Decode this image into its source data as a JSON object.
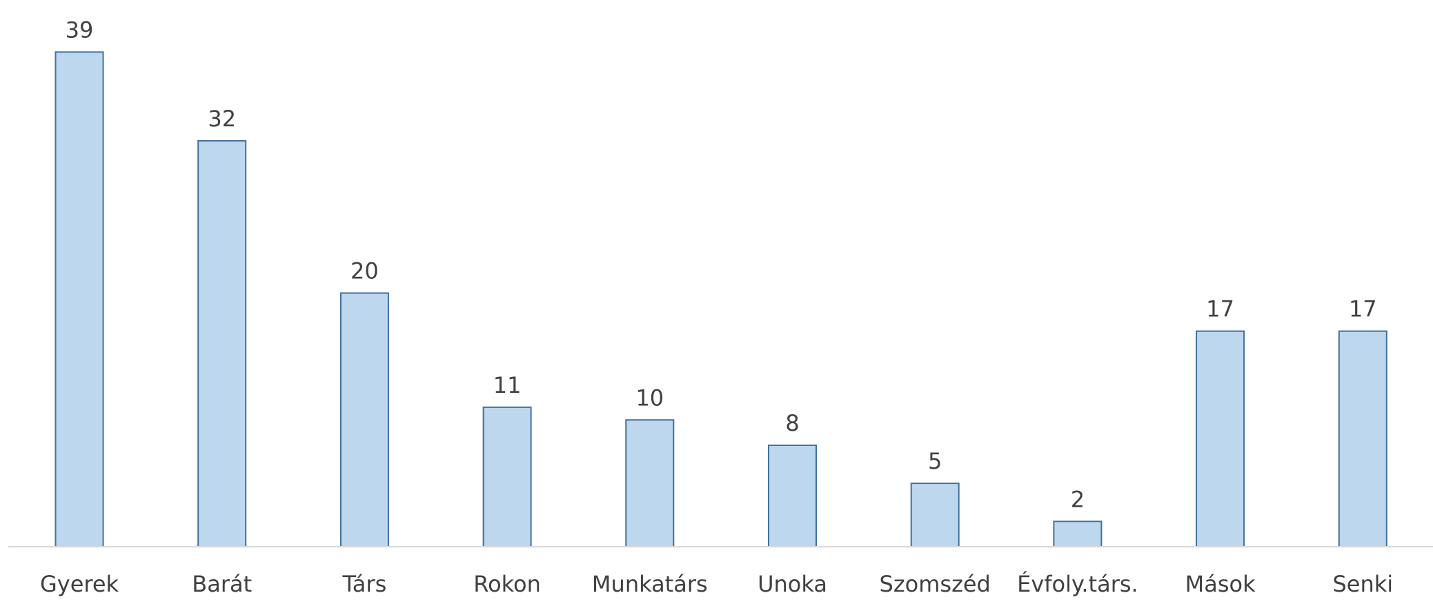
{
  "chart_data": {
    "type": "bar",
    "categories": [
      "Gyerek",
      "Barát",
      "Társ",
      "Rokon",
      "Munkatárs",
      "Unoka",
      "Szomszéd",
      "Évfoly.társ.",
      "Mások",
      "Senki"
    ],
    "values": [
      39,
      32,
      20,
      11,
      10,
      8,
      5,
      2,
      17,
      17
    ],
    "color": "#bdd7ee",
    "edge_color": "#41719c",
    "ylim": [
      0,
      40
    ]
  }
}
